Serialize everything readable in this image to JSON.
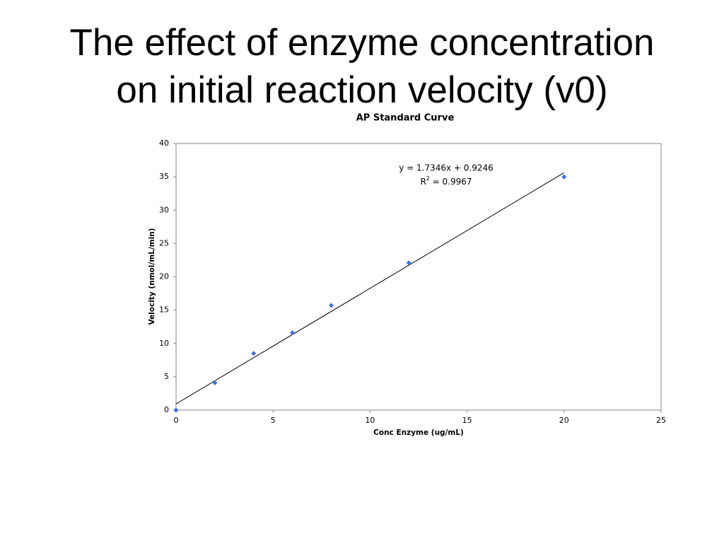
{
  "slide": {
    "title": [
      "The effect of enzyme concentration",
      "on initial reaction velocity (v0)"
    ]
  },
  "chart_data": {
    "type": "scatter",
    "title": "AP Standard Curve",
    "x_label": "Conc Enzyme (ug/mL)",
    "y_label": "Velocity (nmol/mL/min)",
    "x": [
      0,
      2,
      4,
      6,
      8,
      12,
      20
    ],
    "values": [
      0,
      4.1,
      8.5,
      11.6,
      15.7,
      22.1,
      35
    ],
    "color": "#3c6fe6",
    "trendline_color": "#000000",
    "xlim": [
      0,
      25
    ],
    "xticks": [
      0,
      5,
      10,
      15,
      20,
      25
    ],
    "ylim": [
      0,
      40
    ],
    "yticks": [
      0,
      5,
      10,
      15,
      20,
      25,
      30,
      35,
      40
    ],
    "grid": false,
    "trendline": {
      "slope": 1.7346,
      "intercept": 0.9246,
      "equation": "y = 1.7346x + 0.9246",
      "r_squared_label": [
        "R",
        "2",
        " = 0.9967"
      ]
    }
  }
}
